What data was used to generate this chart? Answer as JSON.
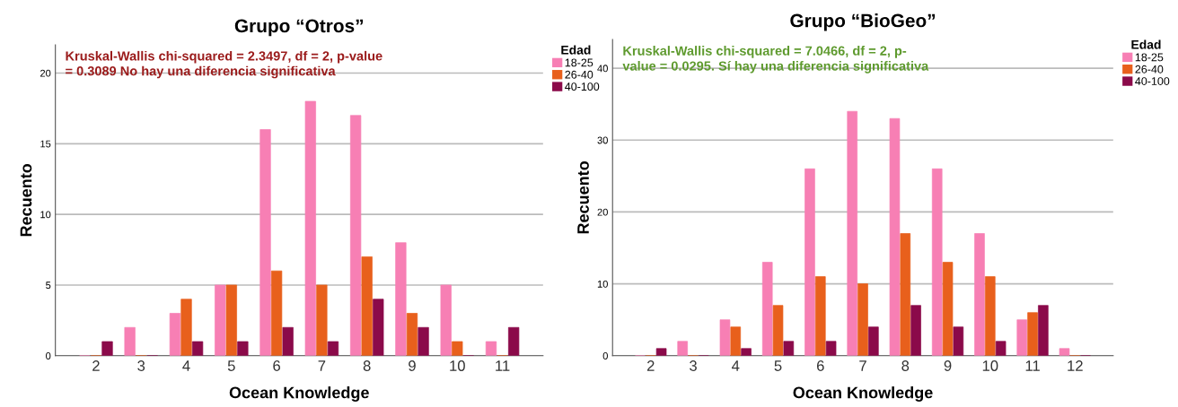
{
  "chart_data": [
    {
      "type": "bar",
      "title": "Grupo “Otros”",
      "xlabel": "Ocean Knowledge",
      "ylabel": "Recuento",
      "legend_title": "Edad",
      "categories": [
        "2",
        "3",
        "4",
        "5",
        "6",
        "7",
        "8",
        "9",
        "10",
        "11"
      ],
      "series": [
        {
          "name": "18-25",
          "color": "#f77fb4",
          "values": [
            0,
            2,
            3,
            5,
            16,
            18,
            17,
            8,
            5,
            1
          ]
        },
        {
          "name": "26-40",
          "color": "#e8601c",
          "values": [
            0,
            0,
            4,
            5,
            6,
            5,
            7,
            3,
            1,
            0
          ]
        },
        {
          "name": "40-100",
          "color": "#8b0a4a",
          "values": [
            1,
            0,
            1,
            1,
            2,
            1,
            4,
            2,
            0,
            2
          ]
        }
      ],
      "ylim": [
        0,
        22
      ],
      "yticks": [
        0,
        5,
        10,
        15,
        20
      ],
      "grid": "y",
      "legend": "right",
      "annotations": [
        "Kruskal-Wallis chi-squared = 2.3497, df = 2, p-value\n= 0.3089 No hay una diferencia significativa"
      ]
    },
    {
      "type": "bar",
      "title": "Grupo “BioGeo”",
      "xlabel": "Ocean Knowledge",
      "ylabel": "Recuento",
      "legend_title": "Edad",
      "categories": [
        "2",
        "3",
        "4",
        "5",
        "6",
        "7",
        "8",
        "9",
        "10",
        "11",
        "12"
      ],
      "series": [
        {
          "name": "18-25",
          "color": "#f77fb4",
          "values": [
            0,
            2,
            5,
            13,
            26,
            34,
            33,
            26,
            17,
            5,
            1
          ]
        },
        {
          "name": "26-40",
          "color": "#e8601c",
          "values": [
            0,
            0,
            4,
            7,
            11,
            10,
            17,
            13,
            11,
            6,
            0
          ]
        },
        {
          "name": "40-100",
          "color": "#8b0a4a",
          "values": [
            1,
            0,
            1,
            2,
            2,
            4,
            7,
            4,
            2,
            7,
            0
          ]
        }
      ],
      "ylim": [
        0,
        44
      ],
      "yticks": [
        0,
        10,
        20,
        30,
        40
      ],
      "grid": "y",
      "legend": "right",
      "annotations": [
        "Kruskal-Wallis chi-squared = 7.0466, df = 2, p-\nvalue = 0.0295. Sí hay una diferencia significativa"
      ]
    }
  ]
}
